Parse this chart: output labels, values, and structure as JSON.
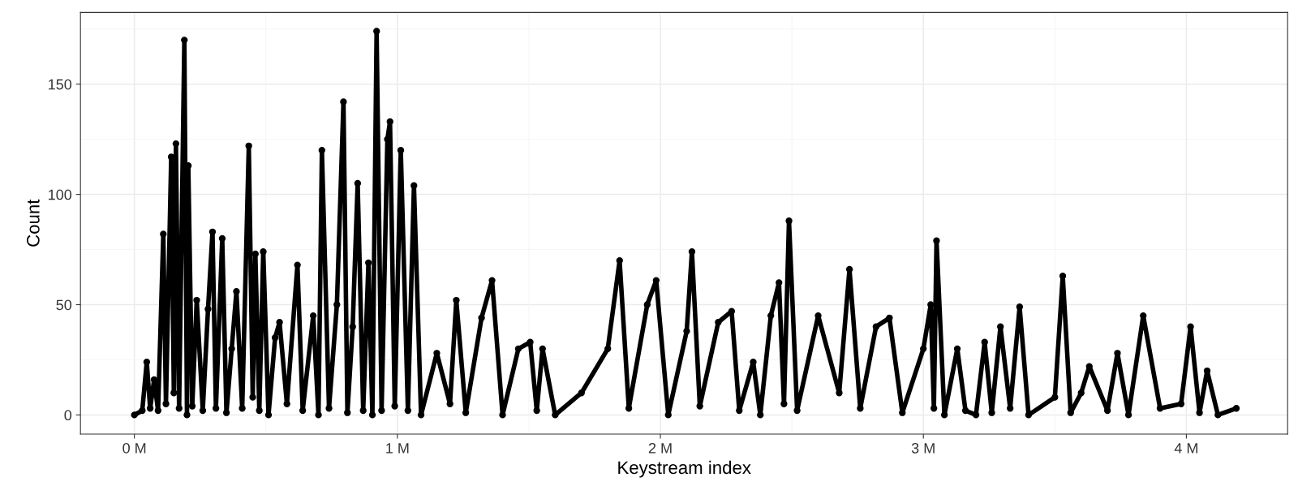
{
  "chart_data": {
    "type": "line",
    "xlabel": "Keystream index",
    "ylabel": "Count",
    "xlim": [
      -0.205,
      4.385
    ],
    "ylim": [
      -8.7,
      182.5
    ],
    "xticks": [
      {
        "value": 0,
        "label": "0 M"
      },
      {
        "value": 1,
        "label": "1 M"
      },
      {
        "value": 2,
        "label": "2 M"
      },
      {
        "value": 3,
        "label": "3 M"
      },
      {
        "value": 4,
        "label": "4 M"
      }
    ],
    "yticks": [
      0,
      50,
      100,
      150
    ],
    "grid": true,
    "marker": "circle",
    "line_style": "solid",
    "series": [
      {
        "color": "#000000",
        "x": [
          0,
          0.03,
          0.047,
          0.06,
          0.075,
          0.09,
          0.11,
          0.12,
          0.14,
          0.15,
          0.158,
          0.17,
          0.19,
          0.2,
          0.205,
          0.22,
          0.237,
          0.26,
          0.28,
          0.297,
          0.31,
          0.334,
          0.35,
          0.37,
          0.388,
          0.41,
          0.435,
          0.45,
          0.46,
          0.475,
          0.49,
          0.51,
          0.535,
          0.552,
          0.58,
          0.62,
          0.64,
          0.68,
          0.7,
          0.713,
          0.74,
          0.77,
          0.795,
          0.81,
          0.83,
          0.849,
          0.87,
          0.89,
          0.905,
          0.921,
          0.94,
          0.962,
          0.972,
          0.99,
          1.013,
          1.04,
          1.063,
          1.09,
          1.15,
          1.2,
          1.224,
          1.26,
          1.32,
          1.36,
          1.4,
          1.46,
          1.505,
          1.53,
          1.552,
          1.6,
          1.7,
          1.8,
          1.845,
          1.88,
          1.95,
          1.984,
          2.03,
          2.1,
          2.12,
          2.15,
          2.22,
          2.271,
          2.3,
          2.353,
          2.38,
          2.42,
          2.451,
          2.47,
          2.489,
          2.52,
          2.6,
          2.68,
          2.719,
          2.76,
          2.82,
          2.871,
          2.92,
          3.0,
          3.028,
          3.04,
          3.05,
          3.08,
          3.129,
          3.16,
          3.2,
          3.233,
          3.26,
          3.293,
          3.33,
          3.366,
          3.4,
          3.5,
          3.53,
          3.56,
          3.6,
          3.631,
          3.7,
          3.738,
          3.78,
          3.836,
          3.9,
          3.98,
          4.016,
          4.05,
          4.079,
          4.12,
          4.19
        ],
        "values": [
          0,
          2,
          24,
          3,
          16,
          2,
          82,
          5,
          117,
          10,
          123,
          3,
          170,
          0,
          113,
          4,
          52,
          2,
          48,
          83,
          3,
          80,
          1,
          30,
          56,
          3,
          122,
          8,
          73,
          2,
          74,
          0,
          35,
          42,
          5,
          68,
          2,
          45,
          0,
          120,
          3,
          50,
          142,
          1,
          40,
          105,
          2,
          69,
          0,
          174,
          2,
          125,
          133,
          4,
          120,
          2,
          104,
          0,
          28,
          5,
          52,
          1,
          44,
          61,
          0,
          30,
          33,
          2,
          30,
          0,
          10,
          30,
          70,
          3,
          50,
          61,
          0,
          38,
          74,
          4,
          42,
          47,
          2,
          24,
          0,
          45,
          60,
          5,
          88,
          2,
          45,
          10,
          66,
          3,
          40,
          44,
          1,
          30,
          50,
          3,
          79,
          0,
          30,
          2,
          0,
          33,
          1,
          40,
          3,
          49,
          0,
          8,
          63,
          1,
          10,
          22,
          2,
          28,
          0,
          45,
          3,
          5,
          40,
          1,
          20,
          0,
          3
        ]
      }
    ]
  }
}
